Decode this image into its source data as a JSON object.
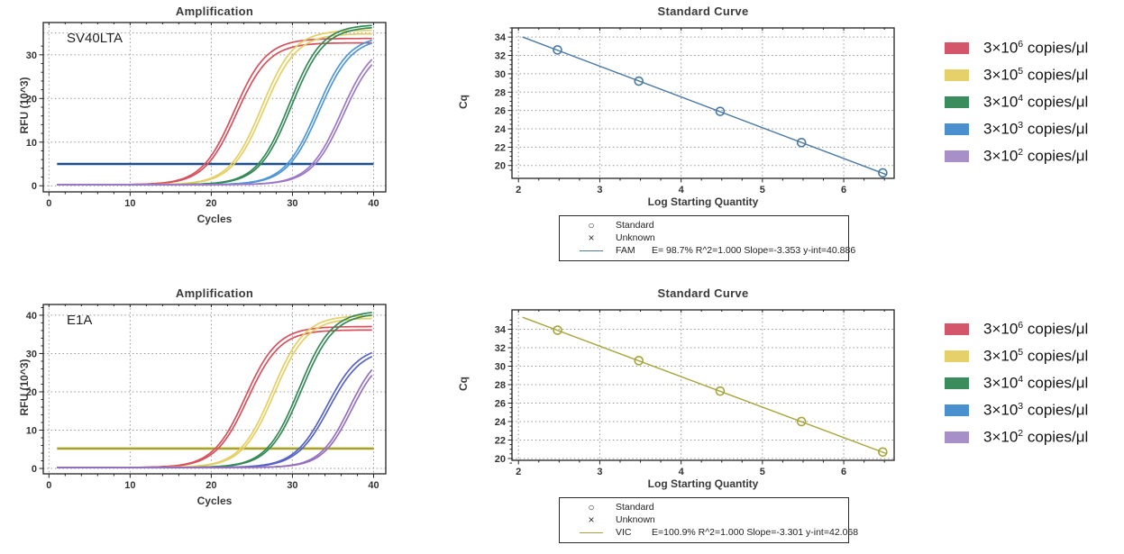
{
  "legend": {
    "items": [
      {
        "base": "3×10",
        "exp": "6",
        "rest": " copies/μl",
        "color": "#d4566a"
      },
      {
        "base": "3×10",
        "exp": "5",
        "rest": " copies/μl",
        "color": "#e6d069"
      },
      {
        "base": "3×10",
        "exp": "4",
        "rest": " copies/μl",
        "color": "#3b8c5c"
      },
      {
        "base": "3×10",
        "exp": "3",
        "rest": " copies/μl",
        "color": "#4a8fce"
      },
      {
        "base": "3×10",
        "exp": "2",
        "rest": " copies/μl",
        "color": "#a78fc8"
      }
    ]
  },
  "chart_data": [
    {
      "id": "amplification-sv40lta",
      "type": "line",
      "subtype": "amplification",
      "title": "Amplification",
      "panel_label": "SV40LTA",
      "xlabel": "Cycles",
      "ylabel": "RFU (10^3)",
      "xlim": [
        -0.7,
        41.5
      ],
      "ylim": [
        -1.4,
        37.4
      ],
      "xticks": [
        0,
        10,
        20,
        30,
        40
      ],
      "yticks": [
        0,
        10,
        20,
        30
      ],
      "extra_grid_y": [
        35
      ],
      "threshold": {
        "y": 5,
        "color": "#1c4f8e"
      },
      "series": [
        {
          "name": "3×10^6 copies/μl",
          "color": "#d8505c",
          "cq": 19.2,
          "mid": 22.8,
          "k": 0.5,
          "plateau": 33.5,
          "plateau2": 32.5
        },
        {
          "name": "3×10^5 copies/μl",
          "color": "#e5cf65",
          "cq": 22.5,
          "mid": 26.2,
          "k": 0.5,
          "plateau": 35.4,
          "plateau2": 34.6
        },
        {
          "name": "3×10^4 copies/μl",
          "color": "#358956",
          "cq": 25.9,
          "mid": 29.6,
          "k": 0.5,
          "plateau": 36.7,
          "plateau2": 36.2
        },
        {
          "name": "3×10^3 copies/μl",
          "color": "#4e96d8",
          "cq": 29.2,
          "mid": 33.0,
          "k": 0.5,
          "plateau": 34.2,
          "plateau2": 33.7
        },
        {
          "name": "3×10^2 copies/μl",
          "color": "#9b79c6",
          "cq": 32.6,
          "mid": 36.0,
          "k": 0.5,
          "plateau": 33.0,
          "plateau2": 32.3
        }
      ]
    },
    {
      "id": "standard-curve-fam",
      "type": "scatter",
      "subtype": "standard",
      "title": "Standard Curve",
      "xlabel": "Log Starting Quantity",
      "ylabel": "Cq",
      "xlim": [
        1.92,
        6.62
      ],
      "ylim": [
        18.6,
        35.0
      ],
      "xticks": [
        2,
        3,
        4,
        5,
        6
      ],
      "yticks": [
        20,
        22,
        24,
        26,
        28,
        30,
        32,
        34
      ],
      "line_color": "#4a7aa5",
      "points_x": [
        2.48,
        3.48,
        4.48,
        5.48,
        6.48
      ],
      "points_y": [
        32.6,
        29.2,
        25.9,
        22.5,
        19.2
      ],
      "fit": {
        "slope": -3.353,
        "y_int": 40.886,
        "x_start": 2.05,
        "x_end": 6.52
      },
      "stats_box": {
        "standard_label": "Standard",
        "unknown_label": "Unknown",
        "fit_name": "FAM",
        "fit_stats": "E= 98.7% R^2=1.000 Slope=-3.353 y-int=40.886"
      }
    },
    {
      "id": "amplification-e1a",
      "type": "line",
      "subtype": "amplification",
      "title": "Amplification",
      "panel_label": "E1A",
      "xlabel": "Cycles",
      "ylabel": "RFU (10^3)",
      "xlim": [
        -0.7,
        41.5
      ],
      "ylim": [
        -1.4,
        42.8
      ],
      "xticks": [
        0,
        10,
        20,
        30,
        40
      ],
      "yticks": [
        0,
        10,
        20,
        30,
        40
      ],
      "extra_grid_y": [],
      "threshold": {
        "y": 5.2,
        "color": "#a7a324"
      },
      "series": [
        {
          "name": "3×10^6 copies/μl",
          "color": "#d8505c",
          "cq": 20.7,
          "mid": 24.2,
          "k": 0.5,
          "plateau": 36.8,
          "plateau2": 35.9
        },
        {
          "name": "3×10^5 copies/μl",
          "color": "#e5cf65",
          "cq": 24.0,
          "mid": 27.5,
          "k": 0.5,
          "plateau": 39.7,
          "plateau2": 39.0
        },
        {
          "name": "3×10^4 copies/μl",
          "color": "#358956",
          "cq": 27.3,
          "mid": 30.8,
          "k": 0.5,
          "plateau": 40.9,
          "plateau2": 40.3
        },
        {
          "name": "3×10^3 copies/μl",
          "color": "#5562c8",
          "cq": 30.6,
          "mid": 34.2,
          "k": 0.5,
          "plateau": 31.8,
          "plateau2": 31.0
        },
        {
          "name": "3×10^2 copies/μl",
          "color": "#9470bd",
          "cq": 33.9,
          "mid": 37.0,
          "k": 0.55,
          "plateau": 31.0,
          "plateau2": 30.2
        }
      ]
    },
    {
      "id": "standard-curve-vic",
      "type": "scatter",
      "subtype": "standard",
      "title": "Standard Curve",
      "xlabel": "Log Starting Quantity",
      "ylabel": "Cq",
      "xlim": [
        1.92,
        6.62
      ],
      "ylim": [
        19.8,
        36.1
      ],
      "xticks": [
        2,
        3,
        4,
        5,
        6
      ],
      "yticks": [
        20,
        22,
        24,
        26,
        28,
        30,
        32,
        34
      ],
      "line_color": "#a8a43b",
      "points_x": [
        2.48,
        3.48,
        4.48,
        5.48,
        6.48
      ],
      "points_y": [
        33.9,
        30.6,
        27.3,
        24.0,
        20.7
      ],
      "fit": {
        "slope": -3.301,
        "y_int": 42.068,
        "x_start": 2.05,
        "x_end": 6.52
      },
      "stats_box": {
        "standard_label": "Standard",
        "unknown_label": "Unknown",
        "fit_name": "VIC",
        "fit_stats": "E=100.9% R^2=1.000 Slope=-3.301 y-int=42.068"
      }
    }
  ]
}
